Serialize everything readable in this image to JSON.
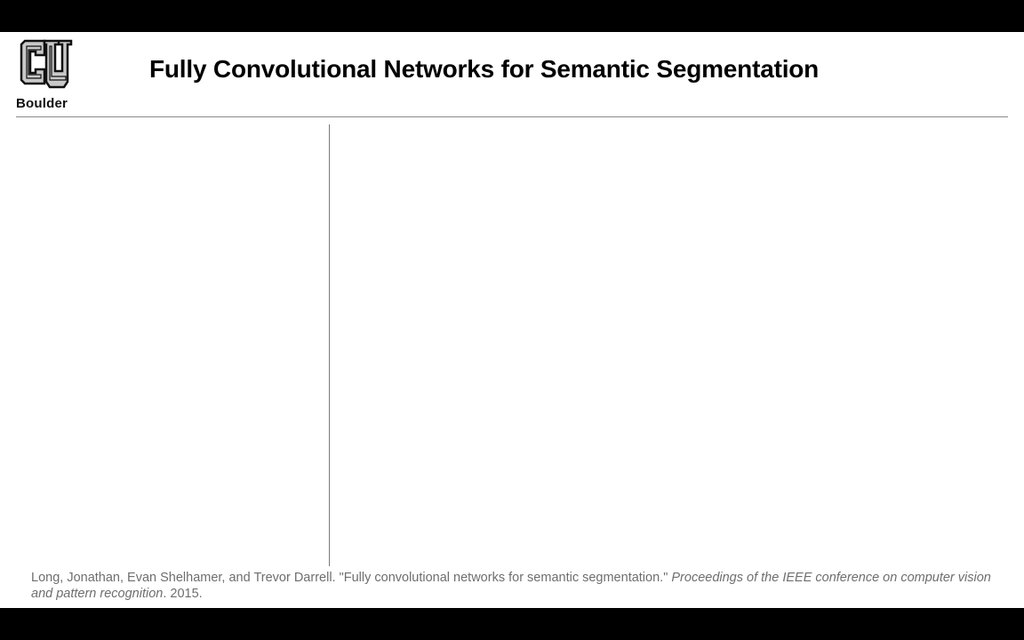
{
  "slide": {
    "logo": {
      "icon": "cu-boulder-logo",
      "text": "Boulder"
    },
    "title": "Fully Convolutional Networks for Semantic Segmentation",
    "citation": {
      "authors": "Long, Jonathan, Evan Shelhamer, and Trevor Darrell.",
      "paper_title": "\"Fully convolutional networks for semantic segmentation.\"",
      "venue": "Proceedings of the IEEE conference on computer vision and pattern recognition",
      "year": ". 2015."
    }
  },
  "colors": {
    "background": "#ffffff",
    "letterbox": "#000000",
    "title": "#000000",
    "citation": "#6e6e6e",
    "rule": "#8a8a8a",
    "logo_fill": "#c9c9c9",
    "logo_stroke": "#111111"
  }
}
